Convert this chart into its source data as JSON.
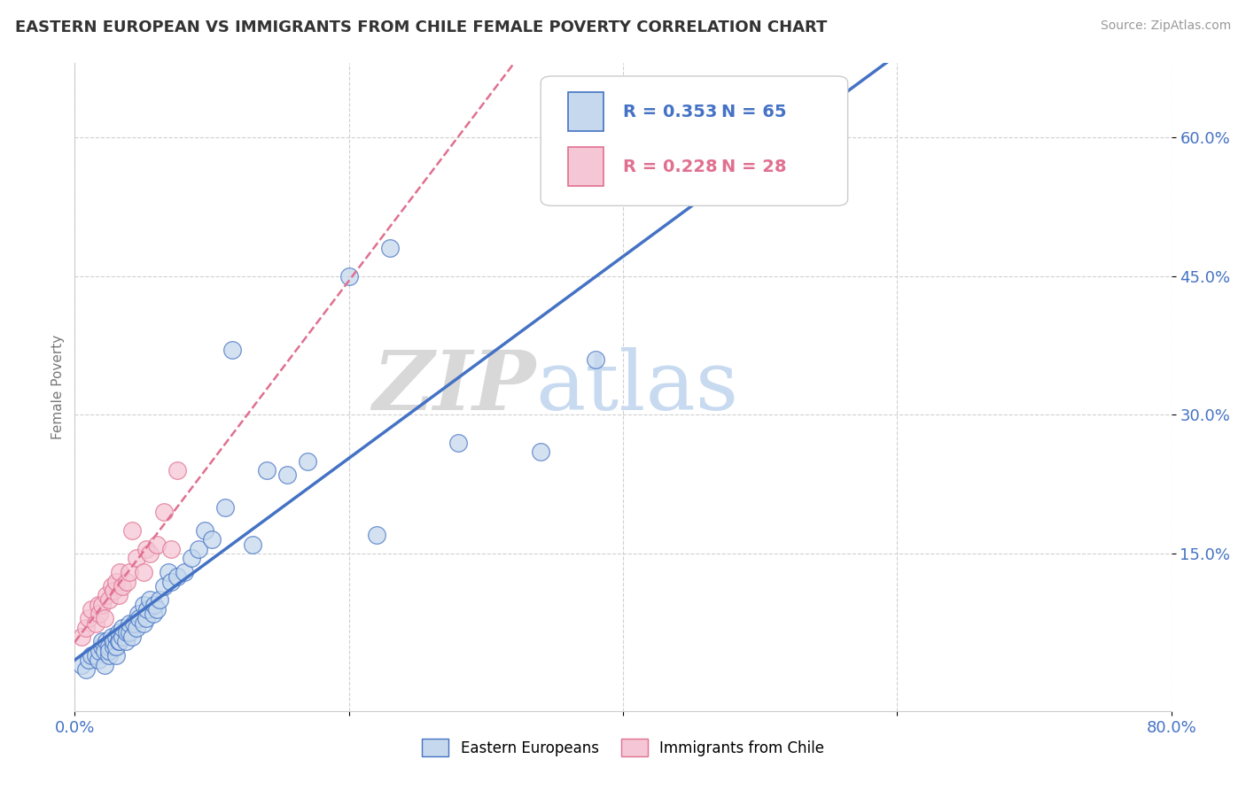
{
  "title": "EASTERN EUROPEAN VS IMMIGRANTS FROM CHILE FEMALE POVERTY CORRELATION CHART",
  "source": "Source: ZipAtlas.com",
  "ylabel": "Female Poverty",
  "xlim": [
    0.0,
    0.8
  ],
  "ylim": [
    -0.02,
    0.68
  ],
  "ytick_positions": [
    0.15,
    0.3,
    0.45,
    0.6
  ],
  "ytick_labels": [
    "15.0%",
    "30.0%",
    "45.0%",
    "60.0%"
  ],
  "legend1_r": "0.353",
  "legend1_n": "65",
  "legend2_r": "0.228",
  "legend2_n": "28",
  "color_eastern": "#c5d8ed",
  "color_chile": "#f5c6d5",
  "line_color_eastern": "#4472c4",
  "line_color_chile": "#e07090",
  "watermark_zip": "ZIP",
  "watermark_atlas": "atlas",
  "legend_labels": [
    "Eastern Europeans",
    "Immigrants from Chile"
  ],
  "eastern_x": [
    0.005,
    0.008,
    0.01,
    0.012,
    0.015,
    0.017,
    0.018,
    0.02,
    0.02,
    0.022,
    0.022,
    0.023,
    0.025,
    0.025,
    0.025,
    0.027,
    0.028,
    0.028,
    0.03,
    0.03,
    0.03,
    0.032,
    0.032,
    0.033,
    0.035,
    0.035,
    0.037,
    0.038,
    0.04,
    0.04,
    0.042,
    0.043,
    0.045,
    0.046,
    0.047,
    0.05,
    0.05,
    0.052,
    0.053,
    0.055,
    0.057,
    0.058,
    0.06,
    0.062,
    0.065,
    0.068,
    0.07,
    0.075,
    0.08,
    0.085,
    0.09,
    0.095,
    0.1,
    0.11,
    0.115,
    0.13,
    0.14,
    0.155,
    0.17,
    0.2,
    0.22,
    0.23,
    0.28,
    0.34,
    0.38
  ],
  "eastern_y": [
    0.03,
    0.025,
    0.035,
    0.04,
    0.04,
    0.035,
    0.045,
    0.05,
    0.055,
    0.03,
    0.045,
    0.055,
    0.04,
    0.05,
    0.045,
    0.06,
    0.05,
    0.055,
    0.04,
    0.06,
    0.05,
    0.055,
    0.065,
    0.055,
    0.06,
    0.07,
    0.055,
    0.065,
    0.065,
    0.075,
    0.06,
    0.075,
    0.07,
    0.085,
    0.08,
    0.075,
    0.095,
    0.08,
    0.09,
    0.1,
    0.085,
    0.095,
    0.09,
    0.1,
    0.115,
    0.13,
    0.12,
    0.125,
    0.13,
    0.145,
    0.155,
    0.175,
    0.165,
    0.2,
    0.37,
    0.16,
    0.24,
    0.235,
    0.25,
    0.45,
    0.17,
    0.48,
    0.27,
    0.26,
    0.36
  ],
  "chile_x": [
    0.005,
    0.008,
    0.01,
    0.012,
    0.015,
    0.017,
    0.018,
    0.02,
    0.022,
    0.023,
    0.025,
    0.027,
    0.028,
    0.03,
    0.032,
    0.033,
    0.035,
    0.038,
    0.04,
    0.042,
    0.045,
    0.05,
    0.052,
    0.055,
    0.06,
    0.065,
    0.07,
    0.075
  ],
  "chile_y": [
    0.06,
    0.07,
    0.08,
    0.09,
    0.075,
    0.095,
    0.085,
    0.095,
    0.08,
    0.105,
    0.1,
    0.115,
    0.11,
    0.12,
    0.105,
    0.13,
    0.115,
    0.12,
    0.13,
    0.175,
    0.145,
    0.13,
    0.155,
    0.15,
    0.16,
    0.195,
    0.155,
    0.24
  ]
}
